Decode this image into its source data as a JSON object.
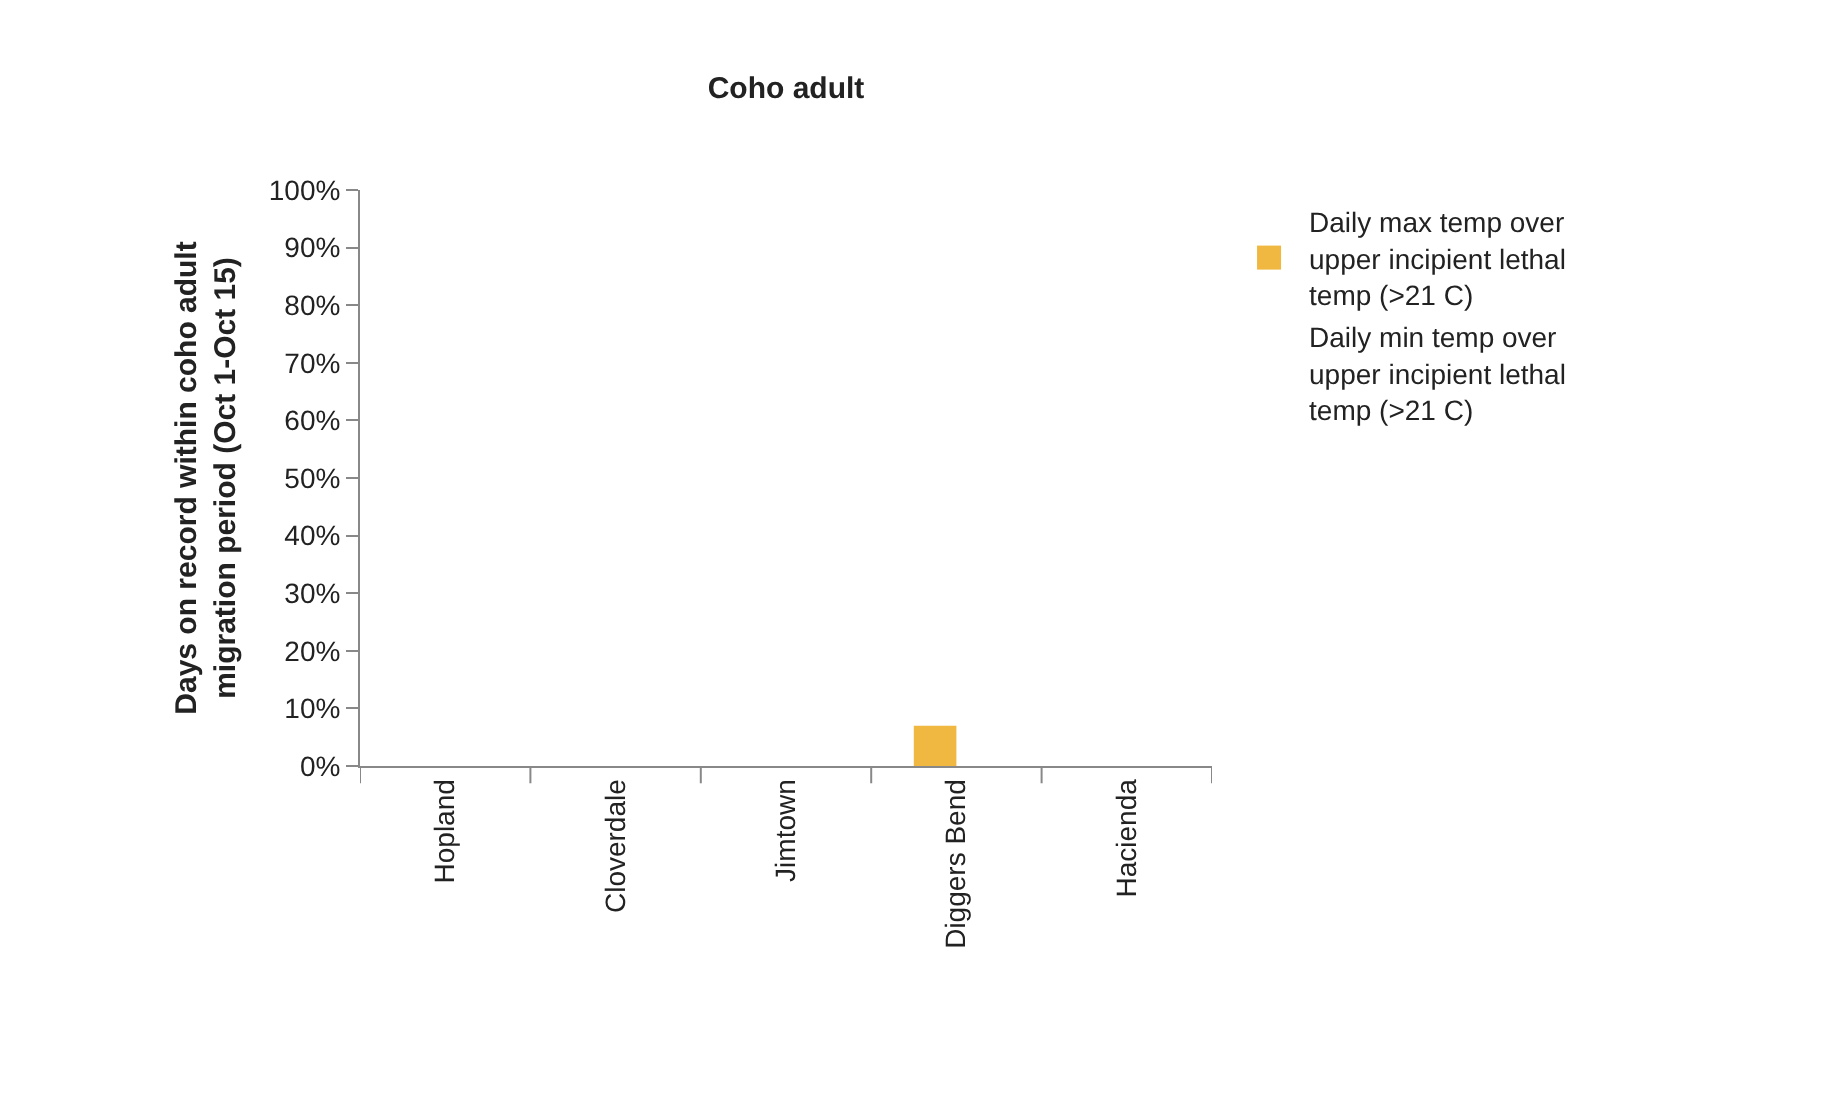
{
  "chart_data": {
    "type": "bar",
    "title": "Coho adult",
    "ylabel": "Days on record within coho adult migration period (Oct 1-Oct 15)",
    "categories": [
      "Hopland",
      "Cloverdale",
      "Jimtown",
      "Diggers Bend",
      "Hacienda"
    ],
    "series": [
      {
        "name": "Daily max temp over upper incipient lethal temp (>21 C)",
        "color": "#f0b840",
        "values": [
          0,
          0,
          0,
          7,
          0
        ]
      },
      {
        "name": "Daily min temp over upper incipient lethal temp (>21 C)",
        "values": [
          0,
          0,
          0,
          0,
          0
        ]
      }
    ],
    "ylim": [
      0,
      100
    ],
    "yticks": [
      {
        "value": 0,
        "label": "0%"
      },
      {
        "value": 10,
        "label": "10%"
      },
      {
        "value": 20,
        "label": "20%"
      },
      {
        "value": 30,
        "label": "30%"
      },
      {
        "value": 40,
        "label": "40%"
      },
      {
        "value": 50,
        "label": "50%"
      },
      {
        "value": 60,
        "label": "60%"
      },
      {
        "value": 70,
        "label": "70%"
      },
      {
        "value": 80,
        "label": "80%"
      },
      {
        "value": 90,
        "label": "90%"
      },
      {
        "value": 100,
        "label": "100%"
      }
    ],
    "legend": "top right"
  }
}
